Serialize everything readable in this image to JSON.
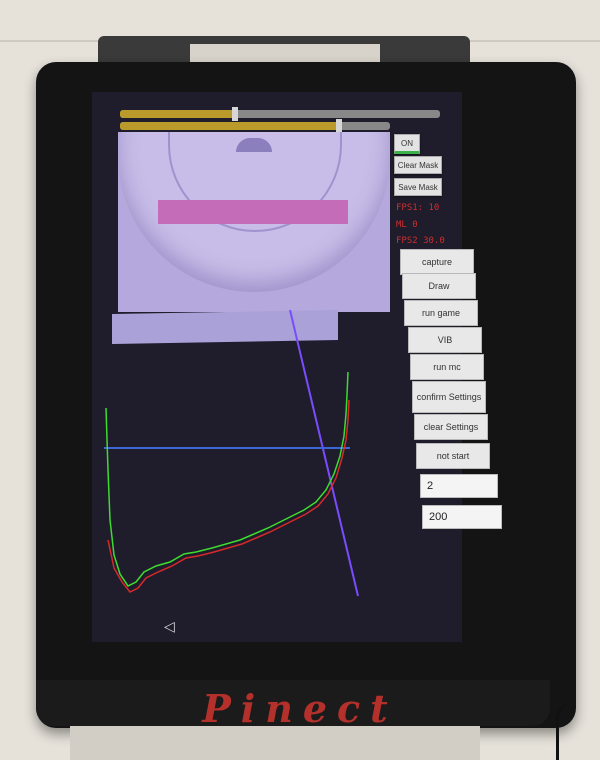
{
  "device": {
    "brand": "Pinect"
  },
  "sliders": [
    {
      "name": "top-slider",
      "fraction": 0.36
    },
    {
      "name": "second-slider",
      "fraction": 0.81
    }
  ],
  "side_buttons": {
    "on_label": "ON",
    "clear_mask_label": "Clear Mask",
    "save_mask_label": "Save Mask"
  },
  "readouts": {
    "line1": "FPS1: 10",
    "line2": "ML 0",
    "line3": "FPS2 30.0"
  },
  "buttons": {
    "capture": "capture",
    "draw": "Draw",
    "run_game": "run game",
    "vib": "VIB",
    "run_mc": "run mc",
    "confirm_settings": "confirm Settings",
    "clear_settings": "clear Settings",
    "not_start": "not start"
  },
  "fields": {
    "field1_value": "2",
    "field2_value": "200"
  },
  "colors": {
    "accent_green": "#3cb34a",
    "profile_green": "#3ddc2f",
    "profile_red": "#d62a2a",
    "blue_line": "#3a66d8",
    "purple_line": "#7a4cff",
    "slider_fill": "#b99a2b"
  }
}
